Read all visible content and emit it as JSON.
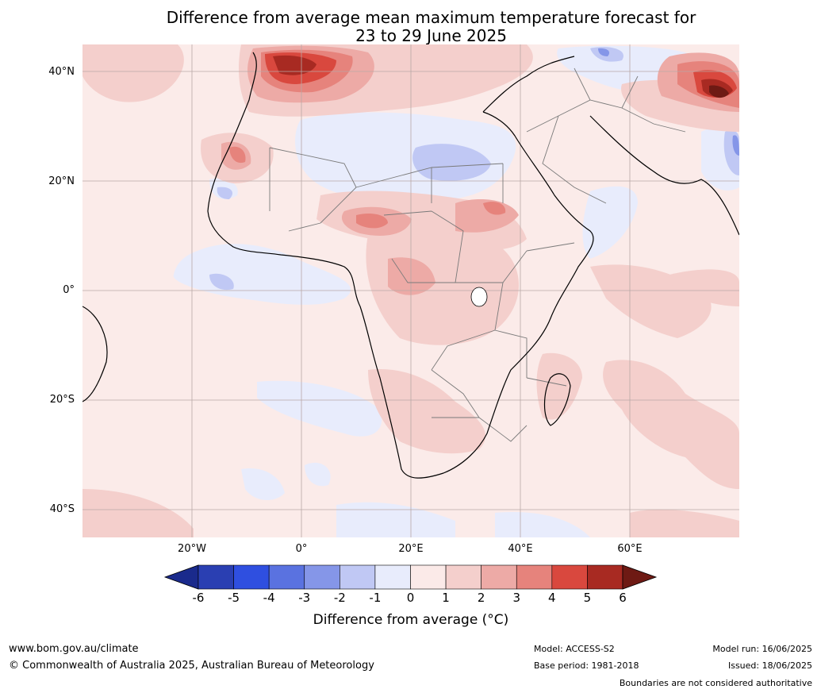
{
  "title": {
    "line1": "Difference from average mean maximum temperature forecast for",
    "line2": "23 to 29 June 2025"
  },
  "axes": {
    "lat_labels": [
      "40°N",
      "20°N",
      "0°",
      "20°S",
      "40°S"
    ],
    "lon_labels": [
      "20°W",
      "0°",
      "20°E",
      "40°E",
      "60°E"
    ]
  },
  "colorbar": {
    "label": "Difference from average (°C)",
    "ticks": [
      "-6",
      "-5",
      "-4",
      "-3",
      "-2",
      "-1",
      "0",
      "1",
      "2",
      "3",
      "4",
      "5",
      "6"
    ],
    "colors": [
      "#1a2a8c",
      "#2a3fb2",
      "#2f4fe0",
      "#5a72e0",
      "#8596e8",
      "#c0c8f4",
      "#e8ecfc",
      "#fbeae8",
      "#f4cfcc",
      "#edaaa6",
      "#e6837c",
      "#d9483e",
      "#a82a22",
      "#6e1a14"
    ]
  },
  "map_colors": {
    "ocean": "#fbebe9",
    "land_base": "#fbebe9",
    "warm1": "#f4cfcc",
    "warm2": "#edaaa6",
    "warm3": "#e6837c",
    "warm4": "#d9483e",
    "warm5": "#a82a22",
    "warm6": "#6e1a14",
    "cool1": "#e8ecfc",
    "cool2": "#c0c8f4",
    "cool3": "#8596e8",
    "grid": "#b8a8a6",
    "coast": "#000000",
    "border": "#7a7a7a"
  },
  "footer": {
    "website": "www.bom.gov.au/climate",
    "copyright": "© Commonwealth of Australia 2025, Australian Bureau of Meteorology",
    "model": "Model: ACCESS-S2",
    "base_period": "Base period: 1981-2018",
    "model_run": "Model run: 16/06/2025",
    "issued": "Issued: 18/06/2025",
    "disclaimer": "Boundaries are not considered authoritative"
  }
}
